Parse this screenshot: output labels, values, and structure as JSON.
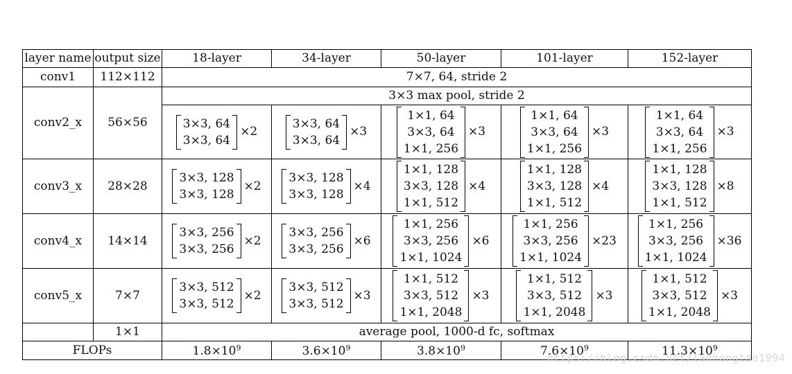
{
  "table": {
    "headers": [
      "layer name",
      "output size",
      "18-layer",
      "34-layer",
      "50-layer",
      "101-layer",
      "152-layer"
    ],
    "conv1": {
      "name": "conv1",
      "size": "112×112",
      "spec": "7×7, 64, stride 2"
    },
    "pool": {
      "spec": "3×3 max pool, stride 2"
    },
    "blocks": [
      {
        "name": "conv2_x",
        "size": "56×56",
        "cells": [
          {
            "lines": [
              "3×3, 64",
              "3×3, 64"
            ],
            "mult": "×2"
          },
          {
            "lines": [
              "3×3, 64",
              "3×3, 64"
            ],
            "mult": "×3"
          },
          {
            "lines": [
              "1×1, 64",
              "3×3, 64",
              "1×1, 256"
            ],
            "mult": "×3"
          },
          {
            "lines": [
              "1×1, 64",
              "3×3, 64",
              "1×1, 256"
            ],
            "mult": "×3"
          },
          {
            "lines": [
              "1×1, 64",
              "3×3, 64",
              "1×1, 256"
            ],
            "mult": "×3"
          }
        ]
      },
      {
        "name": "conv3_x",
        "size": "28×28",
        "cells": [
          {
            "lines": [
              "3×3, 128",
              "3×3, 128"
            ],
            "mult": "×2"
          },
          {
            "lines": [
              "3×3, 128",
              "3×3, 128"
            ],
            "mult": "×4"
          },
          {
            "lines": [
              "1×1, 128",
              "3×3, 128",
              "1×1, 512"
            ],
            "mult": "×4"
          },
          {
            "lines": [
              "1×1, 128",
              "3×3, 128",
              "1×1, 512"
            ],
            "mult": "×4"
          },
          {
            "lines": [
              "1×1, 128",
              "3×3, 128",
              "1×1, 512"
            ],
            "mult": "×8"
          }
        ]
      },
      {
        "name": "conv4_x",
        "size": "14×14",
        "cells": [
          {
            "lines": [
              "3×3, 256",
              "3×3, 256"
            ],
            "mult": "×2"
          },
          {
            "lines": [
              "3×3, 256",
              "3×3, 256"
            ],
            "mult": "×6"
          },
          {
            "lines": [
              "1×1, 256",
              "3×3, 256",
              "1×1, 1024"
            ],
            "mult": "×6"
          },
          {
            "lines": [
              "1×1, 256",
              "3×3, 256",
              "1×1, 1024"
            ],
            "mult": "×23"
          },
          {
            "lines": [
              "1×1, 256",
              "3×3, 256",
              "1×1, 1024"
            ],
            "mult": "×36"
          }
        ]
      },
      {
        "name": "conv5_x",
        "size": "7×7",
        "cells": [
          {
            "lines": [
              "3×3, 512",
              "3×3, 512"
            ],
            "mult": "×2"
          },
          {
            "lines": [
              "3×3, 512",
              "3×3, 512"
            ],
            "mult": "×3"
          },
          {
            "lines": [
              "1×1, 512",
              "3×3, 512",
              "1×1, 2048"
            ],
            "mult": "×3"
          },
          {
            "lines": [
              "1×1, 512",
              "3×3, 512",
              "1×1, 2048"
            ],
            "mult": "×3"
          },
          {
            "lines": [
              "1×1, 512",
              "3×3, 512",
              "1×1, 2048"
            ],
            "mult": "×3"
          }
        ]
      }
    ],
    "avgpool": {
      "size": "1×1",
      "spec": "average pool, 1000-d fc, softmax"
    },
    "flops": {
      "label": "FLOPs",
      "values": [
        {
          "mant": "1.8×10",
          "exp": "9"
        },
        {
          "mant": "3.6×10",
          "exp": "9"
        },
        {
          "mant": "3.8×10",
          "exp": "9"
        },
        {
          "mant": "7.6×10",
          "exp": "9"
        },
        {
          "mant": "11.3×10",
          "exp": "9"
        }
      ]
    }
  },
  "watermark": "https://blog.csdn.net/lanhongtao1994"
}
